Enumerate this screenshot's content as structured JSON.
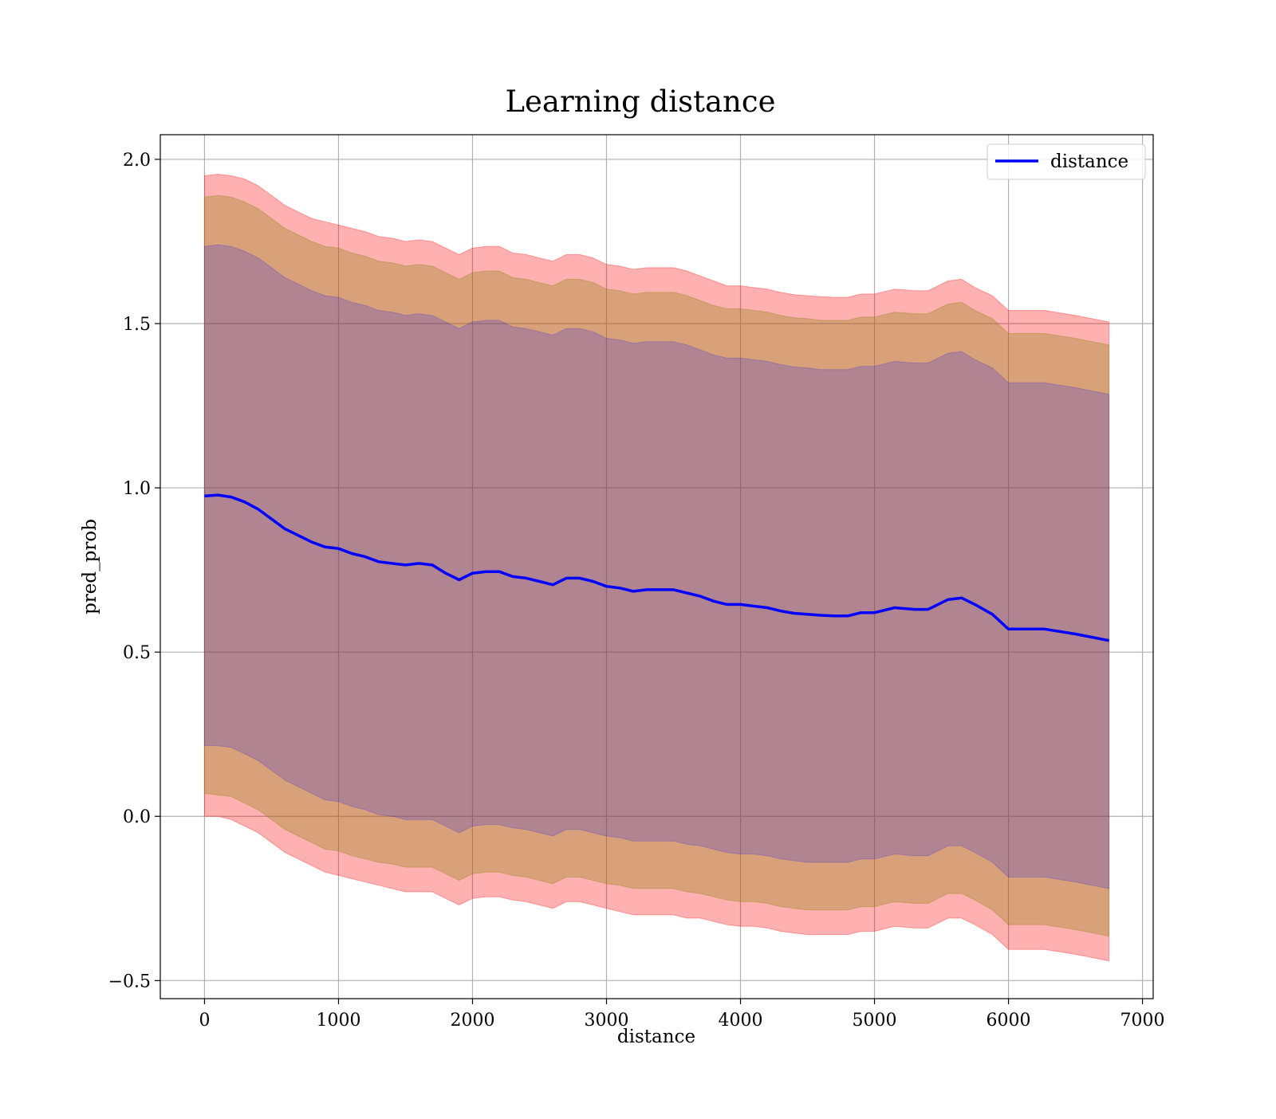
{
  "chart_data": {
    "type": "line",
    "title": "Learning distance",
    "xlabel": "distance",
    "ylabel": "pred_prob",
    "xlim": [
      -330,
      7080
    ],
    "ylim": [
      -0.555,
      2.075
    ],
    "x_ticks": [
      0,
      1000,
      2000,
      3000,
      4000,
      5000,
      6000,
      7000
    ],
    "x_tick_labels": [
      "0",
      "1000",
      "2000",
      "3000",
      "4000",
      "5000",
      "6000",
      "7000"
    ],
    "y_ticks": [
      -0.5,
      0.0,
      0.5,
      1.0,
      1.5,
      2.0
    ],
    "y_tick_labels": [
      "−0.5",
      "0.0",
      "0.5",
      "1.0",
      "1.5",
      "2.0"
    ],
    "grid": true,
    "legend_position": "top-right",
    "series": [
      {
        "name": "distance",
        "color": "#0000ff",
        "x": [
          0,
          100,
          200,
          300,
          400,
          500,
          600,
          700,
          800,
          900,
          1000,
          1100,
          1200,
          1300,
          1400,
          1500,
          1600,
          1700,
          1800,
          1900,
          2000,
          2100,
          2200,
          2300,
          2400,
          2500,
          2600,
          2700,
          2800,
          2900,
          3000,
          3100,
          3200,
          3300,
          3400,
          3500,
          3600,
          3700,
          3800,
          3900,
          4000,
          4100,
          4200,
          4300,
          4400,
          4500,
          4600,
          4700,
          4800,
          4900,
          5000,
          5150,
          5300,
          5400,
          5550,
          5650,
          5750,
          5880,
          6000,
          6100,
          6270,
          6500,
          6750
        ],
        "y": [
          0.975,
          0.978,
          0.972,
          0.957,
          0.935,
          0.905,
          0.875,
          0.855,
          0.835,
          0.82,
          0.815,
          0.8,
          0.79,
          0.775,
          0.77,
          0.765,
          0.77,
          0.765,
          0.74,
          0.72,
          0.74,
          0.745,
          0.745,
          0.73,
          0.725,
          0.715,
          0.705,
          0.725,
          0.725,
          0.715,
          0.7,
          0.695,
          0.685,
          0.69,
          0.69,
          0.69,
          0.68,
          0.67,
          0.655,
          0.645,
          0.645,
          0.64,
          0.635,
          0.625,
          0.618,
          0.615,
          0.612,
          0.61,
          0.61,
          0.62,
          0.62,
          0.635,
          0.63,
          0.63,
          0.66,
          0.665,
          0.645,
          0.615,
          0.57,
          0.57,
          0.57,
          0.555,
          0.535
        ],
        "bands": [
          {
            "lower": [
              0.0,
              0.0,
              -0.01,
              -0.03,
              -0.05,
              -0.08,
              -0.11,
              -0.13,
              -0.15,
              -0.17,
              -0.18,
              -0.19,
              -0.2,
              -0.21,
              -0.22,
              -0.23,
              -0.23,
              -0.23,
              -0.25,
              -0.27,
              -0.25,
              -0.245,
              -0.245,
              -0.255,
              -0.26,
              -0.27,
              -0.28,
              -0.26,
              -0.26,
              -0.27,
              -0.28,
              -0.29,
              -0.3,
              -0.3,
              -0.3,
              -0.3,
              -0.31,
              -0.31,
              -0.32,
              -0.33,
              -0.335,
              -0.335,
              -0.34,
              -0.35,
              -0.355,
              -0.36,
              -0.36,
              -0.36,
              -0.36,
              -0.35,
              -0.35,
              -0.335,
              -0.34,
              -0.34,
              -0.31,
              -0.31,
              -0.33,
              -0.36,
              -0.405,
              -0.405,
              -0.405,
              -0.42,
              -0.44
            ],
            "upper": [
              1.95,
              1.955,
              1.95,
              1.94,
              1.92,
              1.89,
              1.86,
              1.84,
              1.82,
              1.81,
              1.8,
              1.79,
              1.78,
              1.765,
              1.76,
              1.75,
              1.755,
              1.75,
              1.73,
              1.71,
              1.73,
              1.735,
              1.735,
              1.715,
              1.71,
              1.7,
              1.69,
              1.71,
              1.71,
              1.7,
              1.68,
              1.675,
              1.665,
              1.67,
              1.67,
              1.67,
              1.66,
              1.645,
              1.63,
              1.615,
              1.615,
              1.61,
              1.605,
              1.595,
              1.588,
              1.585,
              1.582,
              1.58,
              1.58,
              1.59,
              1.59,
              1.605,
              1.6,
              1.6,
              1.63,
              1.635,
              1.61,
              1.585,
              1.54,
              1.54,
              1.54,
              1.525,
              1.505
            ],
            "color": "#ff0000",
            "opacity": 0.31
          },
          {
            "lower": [
              0.07,
              0.065,
              0.06,
              0.04,
              0.02,
              -0.01,
              -0.04,
              -0.06,
              -0.08,
              -0.1,
              -0.105,
              -0.12,
              -0.13,
              -0.14,
              -0.145,
              -0.155,
              -0.155,
              -0.155,
              -0.175,
              -0.195,
              -0.175,
              -0.17,
              -0.17,
              -0.18,
              -0.185,
              -0.195,
              -0.205,
              -0.185,
              -0.185,
              -0.195,
              -0.205,
              -0.21,
              -0.22,
              -0.22,
              -0.22,
              -0.22,
              -0.23,
              -0.235,
              -0.245,
              -0.255,
              -0.26,
              -0.26,
              -0.265,
              -0.275,
              -0.28,
              -0.285,
              -0.285,
              -0.285,
              -0.285,
              -0.275,
              -0.275,
              -0.26,
              -0.265,
              -0.265,
              -0.235,
              -0.235,
              -0.255,
              -0.285,
              -0.33,
              -0.33,
              -0.33,
              -0.345,
              -0.365
            ],
            "upper": [
              1.885,
              1.89,
              1.885,
              1.87,
              1.85,
              1.82,
              1.79,
              1.77,
              1.75,
              1.735,
              1.73,
              1.715,
              1.705,
              1.69,
              1.685,
              1.675,
              1.68,
              1.675,
              1.655,
              1.635,
              1.655,
              1.66,
              1.66,
              1.64,
              1.635,
              1.625,
              1.615,
              1.635,
              1.635,
              1.625,
              1.605,
              1.6,
              1.59,
              1.595,
              1.595,
              1.595,
              1.585,
              1.57,
              1.555,
              1.545,
              1.545,
              1.54,
              1.535,
              1.525,
              1.518,
              1.515,
              1.51,
              1.51,
              1.51,
              1.52,
              1.52,
              1.535,
              1.53,
              1.53,
              1.56,
              1.565,
              1.54,
              1.515,
              1.47,
              1.47,
              1.47,
              1.455,
              1.435
            ],
            "color": "#808000",
            "opacity": 0.31
          },
          {
            "lower": [
              0.215,
              0.215,
              0.21,
              0.19,
              0.17,
              0.14,
              0.11,
              0.09,
              0.07,
              0.05,
              0.045,
              0.03,
              0.02,
              0.005,
              0.0,
              -0.01,
              -0.01,
              -0.01,
              -0.03,
              -0.05,
              -0.03,
              -0.025,
              -0.025,
              -0.035,
              -0.04,
              -0.05,
              -0.06,
              -0.04,
              -0.04,
              -0.05,
              -0.06,
              -0.065,
              -0.075,
              -0.075,
              -0.075,
              -0.075,
              -0.085,
              -0.09,
              -0.1,
              -0.11,
              -0.115,
              -0.115,
              -0.12,
              -0.13,
              -0.135,
              -0.14,
              -0.14,
              -0.14,
              -0.14,
              -0.13,
              -0.13,
              -0.115,
              -0.12,
              -0.12,
              -0.09,
              -0.09,
              -0.11,
              -0.14,
              -0.185,
              -0.185,
              -0.185,
              -0.2,
              -0.22
            ],
            "upper": [
              1.735,
              1.74,
              1.735,
              1.72,
              1.7,
              1.67,
              1.64,
              1.62,
              1.6,
              1.585,
              1.58,
              1.565,
              1.555,
              1.54,
              1.535,
              1.525,
              1.53,
              1.525,
              1.505,
              1.485,
              1.505,
              1.51,
              1.51,
              1.49,
              1.485,
              1.475,
              1.465,
              1.485,
              1.485,
              1.475,
              1.455,
              1.45,
              1.44,
              1.445,
              1.445,
              1.445,
              1.435,
              1.42,
              1.405,
              1.395,
              1.395,
              1.39,
              1.385,
              1.375,
              1.368,
              1.365,
              1.36,
              1.36,
              1.36,
              1.37,
              1.37,
              1.385,
              1.38,
              1.38,
              1.41,
              1.415,
              1.39,
              1.365,
              1.32,
              1.32,
              1.32,
              1.305,
              1.285
            ],
            "color": "#0000ff",
            "opacity": 0.18
          }
        ]
      }
    ]
  }
}
